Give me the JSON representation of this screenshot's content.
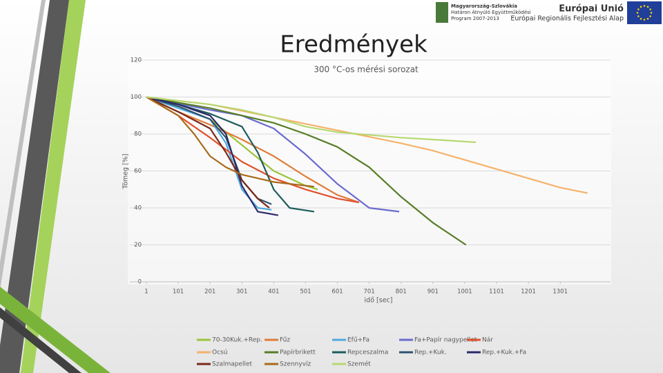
{
  "header": {
    "program_lines": [
      "Magyarország-Szlovákia",
      "Határon Átnyúló Együttműködési",
      "Program 2007-2013"
    ],
    "eu_title": "Európai Unió",
    "eu_fund": "Európai Regionális Fejlesztési Alap"
  },
  "chart_data": {
    "type": "line",
    "title": "Eredmények",
    "subtitle": "300 °C-os mérési sorozat",
    "x_label": "idő [sec]",
    "y_label": "Tömeg [%]",
    "xlim": [
      1,
      1459
    ],
    "xticks": [
      1,
      101,
      201,
      301,
      401,
      501,
      601,
      701,
      801,
      901,
      1001,
      1101,
      1201,
      1301
    ],
    "ylim": [
      0,
      120
    ],
    "yticks": [
      0,
      20,
      40,
      60,
      80,
      100,
      120
    ],
    "grid": true,
    "legend": "bottom",
    "series": [
      {
        "name": "70-30Kuk.+Rep.",
        "color": "#9cc33c",
        "x": [
          1,
          101,
          201,
          301,
          401,
          501,
          539
        ],
        "values": [
          100,
          95,
          88,
          74,
          60,
          52,
          50
        ]
      },
      {
        "name": "Fűz",
        "color": "#e07b39",
        "x": [
          1,
          101,
          201,
          301,
          401,
          501,
          601,
          669
        ],
        "values": [
          100,
          92,
          85,
          77,
          68,
          57,
          47,
          43
        ]
      },
      {
        "name": "Efű+Fa",
        "color": "#4fa8de",
        "x": [
          1,
          101,
          201,
          251,
          301,
          351,
          394
        ],
        "values": [
          100,
          94,
          88,
          75,
          50,
          40,
          39
        ]
      },
      {
        "name": "Fa+Papír nagypellet",
        "color": "#6a6acf",
        "x": [
          1,
          201,
          301,
          401,
          501,
          601,
          701,
          795
        ],
        "values": [
          100,
          93,
          90,
          83,
          69,
          53,
          40,
          38
        ]
      },
      {
        "name": "Nár",
        "color": "#e0502e",
        "x": [
          1,
          101,
          201,
          301,
          401,
          501,
          601,
          669
        ],
        "values": [
          100,
          90,
          78,
          65,
          56,
          50,
          45,
          43
        ]
      },
      {
        "name": "Ocsú",
        "color": "#f5b26b",
        "x": [
          1,
          201,
          401,
          601,
          801,
          901,
          1001,
          1101,
          1201,
          1301,
          1387
        ],
        "values": [
          100,
          96,
          89,
          82,
          75,
          71,
          66,
          61,
          56,
          51,
          48
        ]
      },
      {
        "name": "Papírbrikett",
        "color": "#567d26",
        "x": [
          1,
          201,
          401,
          501,
          601,
          701,
          801,
          901,
          1005
        ],
        "values": [
          100,
          94,
          86,
          80,
          73,
          62,
          46,
          32,
          20
        ]
      },
      {
        "name": "Repceszalma",
        "color": "#1d5c5c",
        "x": [
          1,
          101,
          201,
          301,
          351,
          401,
          451,
          528
        ],
        "values": [
          100,
          96,
          91,
          84,
          70,
          50,
          40,
          38
        ]
      },
      {
        "name": "Rep.+Kuk.",
        "color": "#2e5070",
        "x": [
          1,
          101,
          201,
          251,
          301,
          351,
          394
        ],
        "values": [
          100,
          95,
          88,
          78,
          55,
          45,
          42
        ]
      },
      {
        "name": "Rep.+Kuk.+Fa",
        "color": "#2a2a6a",
        "x": [
          1,
          101,
          201,
          251,
          301,
          351,
          415
        ],
        "values": [
          100,
          96,
          90,
          80,
          52,
          38,
          36
        ]
      },
      {
        "name": "Szalmapellet",
        "color": "#7a2818",
        "x": [
          1,
          101,
          201,
          251,
          301,
          351,
          387
        ],
        "values": [
          100,
          92,
          83,
          70,
          55,
          45,
          40
        ]
      },
      {
        "name": "Szennyvíz",
        "color": "#a86a1a",
        "x": [
          1,
          101,
          151,
          201,
          251,
          301,
          401,
          528
        ],
        "values": [
          100,
          90,
          80,
          68,
          62,
          58,
          54,
          51.5
        ]
      },
      {
        "name": "Szemét",
        "color": "#b7d870",
        "x": [
          1,
          101,
          201,
          301,
          401,
          501,
          601,
          701,
          801,
          901,
          1036
        ],
        "values": [
          100,
          98,
          96,
          93,
          89,
          84,
          81,
          79.5,
          78,
          77,
          75.5
        ]
      }
    ]
  }
}
